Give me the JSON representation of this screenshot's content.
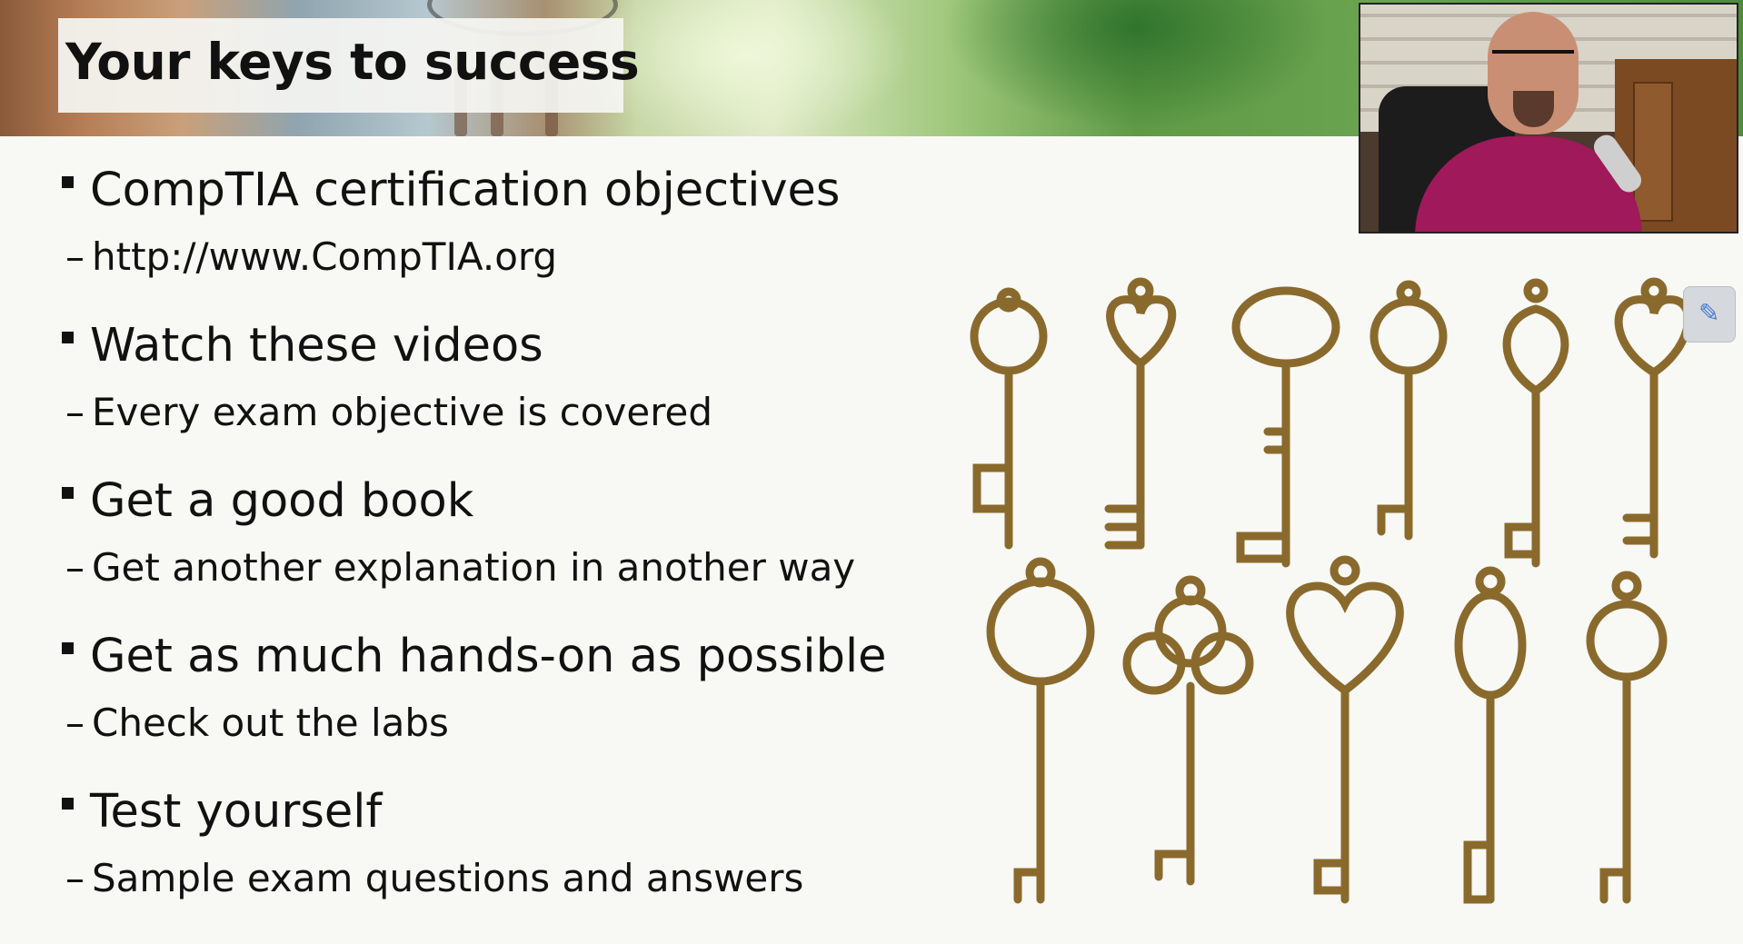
{
  "slide": {
    "title": "Your keys to success",
    "bullets": [
      {
        "text": "CompTIA certification objectives",
        "sub": "http://www.CompTIA.org"
      },
      {
        "text": "Watch these videos",
        "sub": "Every exam objective is covered"
      },
      {
        "text": "Get a good book",
        "sub": "Get another explanation in another way"
      },
      {
        "text": "Get as much hands-on as possible",
        "sub": "Check out the labs"
      },
      {
        "text": "Test yourself",
        "sub": "Sample exam questions and answers"
      }
    ],
    "dash": "–",
    "images": {
      "keys": "antique-brass-keys-image",
      "webcam": "presenter-webcam-feed"
    }
  },
  "colors": {
    "key_brass": "#9a7a35",
    "key_dark": "#5e4a1e",
    "presenter_shirt": "#a0195a"
  }
}
